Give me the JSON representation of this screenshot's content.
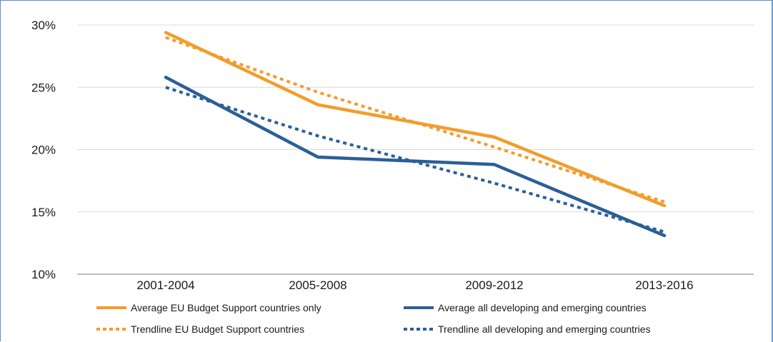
{
  "chart_data": {
    "type": "line",
    "title": "",
    "xlabel": "",
    "ylabel": "",
    "categories": [
      "2001-2004",
      "2005-2008",
      "2009-2012",
      "2013-2016"
    ],
    "y_ticks": [
      "30%",
      "25%",
      "20%",
      "15%",
      "10%"
    ],
    "y_tick_values": [
      30,
      25,
      20,
      15,
      10
    ],
    "ylim": [
      10,
      30
    ],
    "grid": "horizontal",
    "legend_position": "bottom",
    "series": [
      {
        "name": "Average EU Budget Support countries only",
        "values": [
          29.4,
          23.6,
          21.0,
          15.5
        ],
        "color": "#f39c2b",
        "style": "solid"
      },
      {
        "name": "Average all developing and emerging countries",
        "values": [
          25.8,
          19.4,
          18.8,
          13.1
        ],
        "color": "#2a5f97",
        "style": "solid"
      },
      {
        "name": "Trendline EU Budget Support countries",
        "values": [
          29.0,
          24.6,
          20.2,
          15.8
        ],
        "color": "#f39c2b",
        "style": "dotted"
      },
      {
        "name": "Trendline all developing and emerging countries",
        "values": [
          25.0,
          21.1,
          17.3,
          13.4
        ],
        "color": "#2a5f97",
        "style": "dotted"
      }
    ]
  }
}
